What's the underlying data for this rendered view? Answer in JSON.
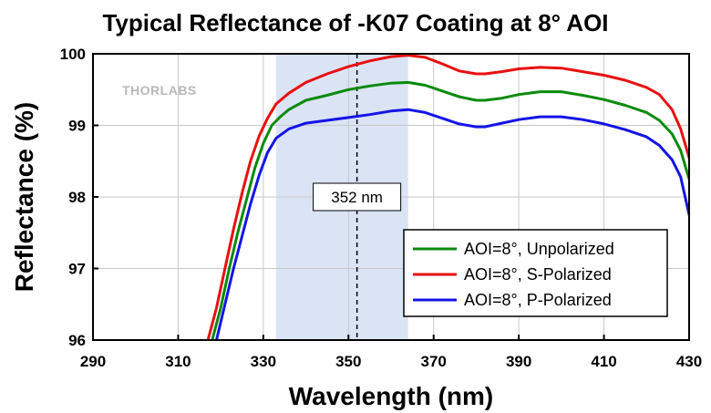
{
  "chart_data": {
    "type": "line",
    "title": "Typical Reflectance of -K07 Coating at 8° AOI",
    "xlabel": "Wavelength (nm)",
    "ylabel": "Reflectance (%)",
    "xlim": [
      290,
      430
    ],
    "ylim": [
      96,
      100
    ],
    "x_ticks": [
      "290",
      "310",
      "330",
      "350",
      "370",
      "390",
      "410",
      "430"
    ],
    "y_ticks": [
      "96",
      "97",
      "98",
      "99",
      "100"
    ],
    "grid": true,
    "legend_position": "lower-right",
    "watermark": "THORLABS",
    "highlight_band": {
      "x_start": 333,
      "x_end": 364,
      "color": "#dbe4f5"
    },
    "marker_line": {
      "x": 352,
      "label": "352 nm"
    },
    "series": [
      {
        "name": "AOI=8°, Unpolarized",
        "color": "#0a8a0a",
        "points": [
          [
            318,
            96.0
          ],
          [
            320,
            96.45
          ],
          [
            322,
            97.0
          ],
          [
            324,
            97.5
          ],
          [
            326,
            97.95
          ],
          [
            328,
            98.4
          ],
          [
            330,
            98.75
          ],
          [
            332,
            99.0
          ],
          [
            334,
            99.12
          ],
          [
            336,
            99.22
          ],
          [
            340,
            99.35
          ],
          [
            345,
            99.42
          ],
          [
            350,
            99.5
          ],
          [
            355,
            99.55
          ],
          [
            360,
            99.59
          ],
          [
            364,
            99.6
          ],
          [
            368,
            99.56
          ],
          [
            372,
            99.48
          ],
          [
            376,
            99.4
          ],
          [
            380,
            99.35
          ],
          [
            382,
            99.35
          ],
          [
            386,
            99.38
          ],
          [
            390,
            99.43
          ],
          [
            395,
            99.47
          ],
          [
            400,
            99.47
          ],
          [
            405,
            99.42
          ],
          [
            410,
            99.36
          ],
          [
            415,
            99.28
          ],
          [
            420,
            99.18
          ],
          [
            423,
            99.07
          ],
          [
            426,
            98.88
          ],
          [
            428,
            98.65
          ],
          [
            430,
            98.25
          ]
        ]
      },
      {
        "name": "AOI=8°, S-Polarized",
        "color": "#e81010",
        "points": [
          [
            317,
            96.0
          ],
          [
            319,
            96.45
          ],
          [
            321,
            97.0
          ],
          [
            323,
            97.55
          ],
          [
            325,
            98.05
          ],
          [
            327,
            98.5
          ],
          [
            329,
            98.85
          ],
          [
            331,
            99.1
          ],
          [
            333,
            99.3
          ],
          [
            336,
            99.45
          ],
          [
            340,
            99.6
          ],
          [
            345,
            99.72
          ],
          [
            350,
            99.82
          ],
          [
            355,
            99.9
          ],
          [
            360,
            99.96
          ],
          [
            364,
            99.98
          ],
          [
            368,
            99.95
          ],
          [
            372,
            99.86
          ],
          [
            376,
            99.76
          ],
          [
            380,
            99.72
          ],
          [
            382,
            99.72
          ],
          [
            386,
            99.75
          ],
          [
            390,
            99.79
          ],
          [
            395,
            99.81
          ],
          [
            400,
            99.8
          ],
          [
            405,
            99.75
          ],
          [
            410,
            99.7
          ],
          [
            415,
            99.63
          ],
          [
            420,
            99.53
          ],
          [
            423,
            99.43
          ],
          [
            426,
            99.22
          ],
          [
            428,
            98.95
          ],
          [
            430,
            98.55
          ]
        ]
      },
      {
        "name": "AOI=8°, P-Polarized",
        "color": "#1414e6",
        "points": [
          [
            319,
            96.0
          ],
          [
            321,
            96.5
          ],
          [
            323,
            97.0
          ],
          [
            325,
            97.45
          ],
          [
            327,
            97.9
          ],
          [
            329,
            98.3
          ],
          [
            331,
            98.62
          ],
          [
            333,
            98.82
          ],
          [
            336,
            98.95
          ],
          [
            340,
            99.03
          ],
          [
            345,
            99.07
          ],
          [
            350,
            99.11
          ],
          [
            355,
            99.15
          ],
          [
            360,
            99.2
          ],
          [
            364,
            99.22
          ],
          [
            368,
            99.18
          ],
          [
            372,
            99.1
          ],
          [
            376,
            99.02
          ],
          [
            380,
            98.98
          ],
          [
            382,
            98.98
          ],
          [
            386,
            99.03
          ],
          [
            390,
            99.08
          ],
          [
            395,
            99.12
          ],
          [
            400,
            99.12
          ],
          [
            405,
            99.08
          ],
          [
            410,
            99.02
          ],
          [
            415,
            98.94
          ],
          [
            420,
            98.84
          ],
          [
            423,
            98.72
          ],
          [
            426,
            98.52
          ],
          [
            428,
            98.28
          ],
          [
            430,
            97.75
          ]
        ]
      }
    ]
  }
}
